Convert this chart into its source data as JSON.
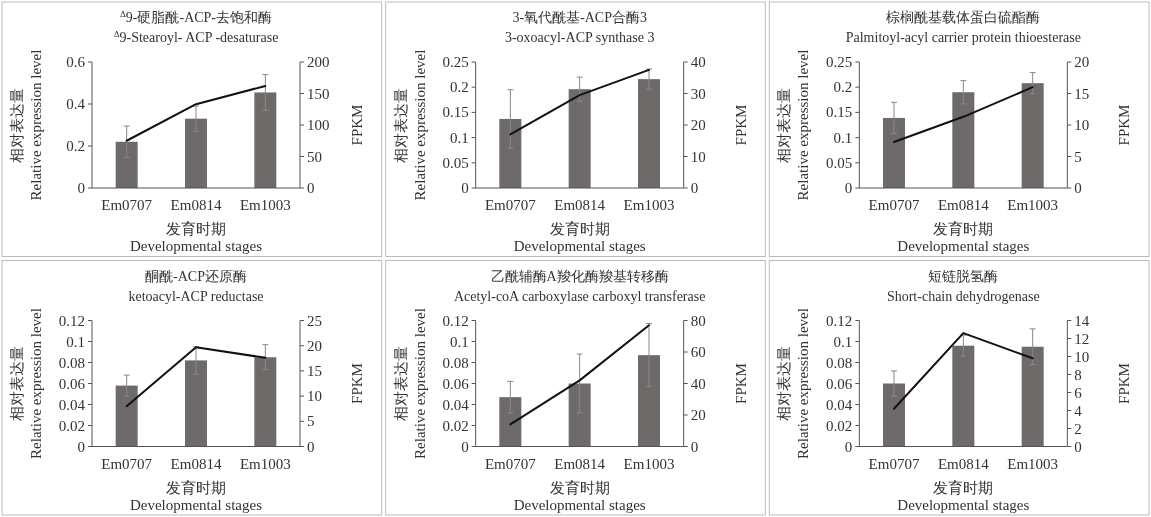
{
  "chart_data": [
    {
      "type": "bar",
      "title": "$^{Δ}$9-硬脂酰-ACP-去饱和酶",
      "subtitle": "$^{Δ}$9-Stearoyl- ACP -desaturase",
      "xlabel": "发育时期\nDevelopmental stages",
      "ylabel": "相对表达量\nRelative expression level",
      "y2label": "FPKM",
      "categories": [
        "Em0707",
        "Em0814",
        "Em1003"
      ],
      "ylim": [
        0,
        0.6
      ],
      "yticks": [
        0,
        0.2,
        0.4,
        0.6
      ],
      "y2lim": [
        0,
        200
      ],
      "y2ticks": [
        0,
        50,
        100,
        150,
        200
      ],
      "grid": false,
      "series": [
        {
          "color": "#6e6a6a",
          "values": [
            0.22,
            0.33,
            0.455
          ],
          "errors": [
            0.075,
            0.06,
            0.085
          ]
        },
        {
          "type": "line",
          "axis": "y2",
          "color": "#111111",
          "values": [
            75,
            133,
            162
          ]
        }
      ]
    },
    {
      "type": "bar",
      "title": "3-氧代酰基-ACP合酶3",
      "subtitle": "3-oxoacyl-ACP synthase 3",
      "xlabel": "发育时期\nDevelopmental stages",
      "ylabel": "相对表达量\nRelative expression level",
      "y2label": "FPKM",
      "categories": [
        "Em0707",
        "Em0814",
        "Em1003"
      ],
      "ylim": [
        0,
        0.25
      ],
      "yticks": [
        0,
        0.05,
        0.1,
        0.15,
        0.2,
        0.25
      ],
      "y2lim": [
        0,
        40
      ],
      "y2ticks": [
        0,
        10,
        20,
        30,
        40
      ],
      "grid": false,
      "series": [
        {
          "color": "#6e6a6a",
          "values": [
            0.137,
            0.196,
            0.216
          ],
          "errors": [
            0.058,
            0.024,
            0.02
          ]
        },
        {
          "type": "line",
          "axis": "y2",
          "color": "#111111",
          "values": [
            17,
            29.5,
            37.5
          ]
        }
      ]
    },
    {
      "type": "bar",
      "title": "棕榈酰基载体蛋白硫酯酶",
      "subtitle": "Palmitoyl-acyl carrier protein thioesterase",
      "xlabel": "发育时期\nDevelopmental stages",
      "ylabel": "相对表达量\nRelative expression level",
      "y2label": "FPKM",
      "categories": [
        "Em0707",
        "Em0814",
        "Em1003"
      ],
      "ylim": [
        0,
        0.25
      ],
      "yticks": [
        0,
        0.05,
        0.1,
        0.15,
        0.2,
        0.25
      ],
      "y2lim": [
        0,
        20
      ],
      "y2ticks": [
        0,
        5,
        10,
        15,
        20
      ],
      "grid": false,
      "series": [
        {
          "color": "#6e6a6a",
          "values": [
            0.139,
            0.19,
            0.208
          ],
          "errors": [
            0.031,
            0.023,
            0.021
          ]
        },
        {
          "type": "line",
          "axis": "y2",
          "color": "#111111",
          "values": [
            7.3,
            11.3,
            16
          ]
        }
      ]
    },
    {
      "type": "bar",
      "title": "酮酰-ACP还原酶",
      "subtitle": "ketoacyl-ACP reductase",
      "xlabel": "发育时期\nDevelopmental stages",
      "ylabel": "相对表达量\nRelative expression level",
      "y2label": "FPKM",
      "categories": [
        "Em0707",
        "Em0814",
        "Em1003"
      ],
      "ylim": [
        0,
        0.12
      ],
      "yticks": [
        0,
        0.02,
        0.04,
        0.06,
        0.08,
        0.1,
        0.12
      ],
      "y2lim": [
        0,
        25
      ],
      "y2ticks": [
        0,
        5,
        10,
        15,
        20,
        25
      ],
      "grid": false,
      "series": [
        {
          "color": "#6e6a6a",
          "values": [
            0.058,
            0.082,
            0.085
          ],
          "errors": [
            0.01,
            0.013,
            0.012
          ]
        },
        {
          "type": "line",
          "axis": "y2",
          "color": "#111111",
          "values": [
            8,
            19.7,
            17.6
          ]
        }
      ]
    },
    {
      "type": "bar",
      "title": "乙酰辅酶A羧化酶羧基转移酶",
      "subtitle": "Acetyl-coA carboxylase carboxyl transferase",
      "xlabel": "发育时期\nDevelopmental stages",
      "ylabel": "相对表达量\nRelative expression level",
      "y2label": "FPKM",
      "categories": [
        "Em0707",
        "Em0814",
        "Em1003"
      ],
      "ylim": [
        0,
        0.12
      ],
      "yticks": [
        0,
        0.02,
        0.04,
        0.06,
        0.08,
        0.1,
        0.12
      ],
      "y2lim": [
        0,
        80
      ],
      "y2ticks": [
        0,
        20,
        40,
        60,
        80
      ],
      "grid": false,
      "series": [
        {
          "color": "#6e6a6a",
          "values": [
            0.047,
            0.06,
            0.087
          ],
          "errors": [
            0.015,
            0.028,
            0.03
          ]
        },
        {
          "type": "line",
          "axis": "y2",
          "color": "#111111",
          "values": [
            14,
            42,
            77
          ]
        }
      ]
    },
    {
      "type": "bar",
      "title": "短链脱氢酶",
      "subtitle": "Short-chain dehydrogenase",
      "xlabel": "发育时期\nDevelopmental stages",
      "ylabel": "相对表达量\nRelative expression level",
      "y2label": "FPKM",
      "categories": [
        "Em0707",
        "Em0814",
        "Em1003"
      ],
      "ylim": [
        0,
        0.12
      ],
      "yticks": [
        0,
        0.02,
        0.04,
        0.06,
        0.08,
        0.1,
        0.12
      ],
      "y2lim": [
        0,
        14
      ],
      "y2ticks": [
        0,
        2,
        4,
        6,
        8,
        10,
        12,
        14
      ],
      "grid": false,
      "series": [
        {
          "color": "#6e6a6a",
          "values": [
            0.06,
            0.096,
            0.095
          ],
          "errors": [
            0.012,
            0.01,
            0.017
          ]
        },
        {
          "type": "line",
          "axis": "y2",
          "color": "#111111",
          "values": [
            4.2,
            12.6,
            9.8
          ]
        }
      ]
    }
  ]
}
